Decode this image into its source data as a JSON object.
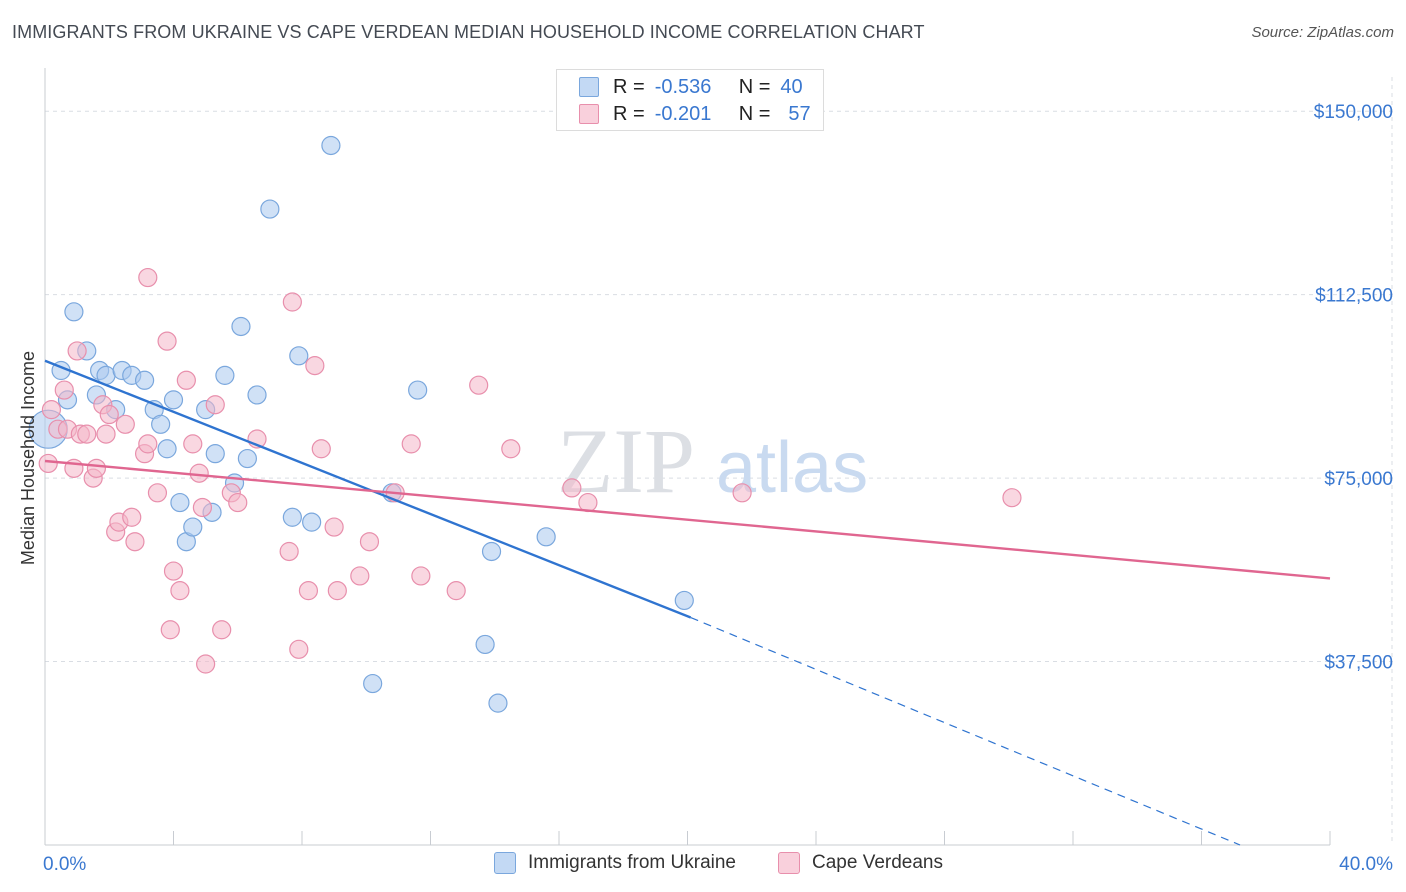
{
  "title": "IMMIGRANTS FROM UKRAINE VS CAPE VERDEAN MEDIAN HOUSEHOLD INCOME CORRELATION CHART",
  "source": "Source: ZipAtlas.com",
  "watermark": {
    "zip": "ZIP",
    "atlas": "atlas"
  },
  "legend": {
    "r_label": "R =",
    "n_label": "N =",
    "rows": [
      {
        "r": "-0.536",
        "n": "40",
        "color": "#a9c8ee"
      },
      {
        "r": "-0.201",
        "n": "57",
        "color": "#f4b6c8"
      }
    ]
  },
  "bottom_legend": [
    "Immigrants from Ukraine",
    "Cape Verdeans"
  ],
  "chart_data": {
    "type": "scatter",
    "title": "IMMIGRANTS FROM UKRAINE VS CAPE VERDEAN MEDIAN HOUSEHOLD INCOME CORRELATION CHART",
    "xlabel": "",
    "ylabel": "Median Household Income",
    "xlim": [
      0,
      40
    ],
    "ylim": [
      0,
      157000
    ],
    "x_tick_labels": [
      "0.0%",
      "40.0%"
    ],
    "y_ticks": [
      37500,
      75000,
      112500,
      150000
    ],
    "y_tick_labels": [
      "$37,500",
      "$75,000",
      "$112,500",
      "$150,000"
    ],
    "grid": true,
    "series": [
      {
        "name": "Immigrants from Ukraine",
        "color": "#a9c8ee",
        "stroke": "#7aa7dd",
        "line_color": "#2f74d0",
        "points": [
          [
            0.1,
            85000
          ],
          [
            0.5,
            97000
          ],
          [
            0.7,
            91000
          ],
          [
            0.9,
            109000
          ],
          [
            1.3,
            101000
          ],
          [
            1.6,
            92000
          ],
          [
            1.7,
            97000
          ],
          [
            1.9,
            96000
          ],
          [
            2.2,
            89000
          ],
          [
            2.4,
            97000
          ],
          [
            2.7,
            96000
          ],
          [
            3.1,
            95000
          ],
          [
            3.4,
            89000
          ],
          [
            3.6,
            86000
          ],
          [
            3.8,
            81000
          ],
          [
            4.0,
            91000
          ],
          [
            4.2,
            70000
          ],
          [
            4.4,
            62000
          ],
          [
            4.6,
            65000
          ],
          [
            5.0,
            89000
          ],
          [
            5.2,
            68000
          ],
          [
            5.3,
            80000
          ],
          [
            5.6,
            96000
          ],
          [
            5.9,
            74000
          ],
          [
            6.1,
            106000
          ],
          [
            6.3,
            79000
          ],
          [
            6.6,
            92000
          ],
          [
            7.0,
            130000
          ],
          [
            7.7,
            67000
          ],
          [
            7.9,
            100000
          ],
          [
            8.3,
            66000
          ],
          [
            8.9,
            143000
          ],
          [
            10.2,
            33000
          ],
          [
            10.8,
            72000
          ],
          [
            11.6,
            93000
          ],
          [
            13.7,
            41000
          ],
          [
            13.9,
            60000
          ],
          [
            14.1,
            29000
          ],
          [
            15.6,
            63000
          ],
          [
            19.9,
            50000
          ]
        ],
        "trend": {
          "x0": 0,
          "y0": 99000,
          "x1": 20.1,
          "y1": 46500,
          "dash_to_x": 37.2,
          "dash_to_y": 0
        }
      },
      {
        "name": "Cape Verdeans",
        "color": "#f4b6c8",
        "stroke": "#e88fac",
        "line_color": "#e06690",
        "points": [
          [
            0.1,
            78000
          ],
          [
            0.2,
            89000
          ],
          [
            0.4,
            85000
          ],
          [
            0.6,
            93000
          ],
          [
            0.7,
            85000
          ],
          [
            0.9,
            77000
          ],
          [
            1.0,
            101000
          ],
          [
            1.1,
            84000
          ],
          [
            1.3,
            84000
          ],
          [
            1.5,
            75000
          ],
          [
            1.6,
            77000
          ],
          [
            1.8,
            90000
          ],
          [
            1.9,
            84000
          ],
          [
            2.0,
            88000
          ],
          [
            2.2,
            64000
          ],
          [
            2.3,
            66000
          ],
          [
            2.5,
            86000
          ],
          [
            2.7,
            67000
          ],
          [
            2.8,
            62000
          ],
          [
            3.1,
            80000
          ],
          [
            3.2,
            82000
          ],
          [
            3.2,
            116000
          ],
          [
            3.5,
            72000
          ],
          [
            3.8,
            103000
          ],
          [
            3.9,
            44000
          ],
          [
            4.0,
            56000
          ],
          [
            4.2,
            52000
          ],
          [
            4.4,
            95000
          ],
          [
            4.6,
            82000
          ],
          [
            4.8,
            76000
          ],
          [
            4.9,
            69000
          ],
          [
            5.0,
            37000
          ],
          [
            5.3,
            90000
          ],
          [
            5.5,
            44000
          ],
          [
            5.8,
            72000
          ],
          [
            6.0,
            70000
          ],
          [
            6.6,
            83000
          ],
          [
            7.7,
            111000
          ],
          [
            7.6,
            60000
          ],
          [
            7.9,
            40000
          ],
          [
            8.2,
            52000
          ],
          [
            8.4,
            98000
          ],
          [
            8.6,
            81000
          ],
          [
            9.0,
            65000
          ],
          [
            9.1,
            52000
          ],
          [
            9.8,
            55000
          ],
          [
            10.1,
            62000
          ],
          [
            10.9,
            72000
          ],
          [
            11.4,
            82000
          ],
          [
            11.7,
            55000
          ],
          [
            12.8,
            52000
          ],
          [
            13.5,
            94000
          ],
          [
            14.5,
            81000
          ],
          [
            16.4,
            73000
          ],
          [
            16.9,
            70000
          ],
          [
            21.7,
            72000
          ],
          [
            30.1,
            71000
          ]
        ],
        "trend": {
          "x0": 0,
          "y0": 78500,
          "x1": 40,
          "y1": 54500
        }
      }
    ]
  }
}
